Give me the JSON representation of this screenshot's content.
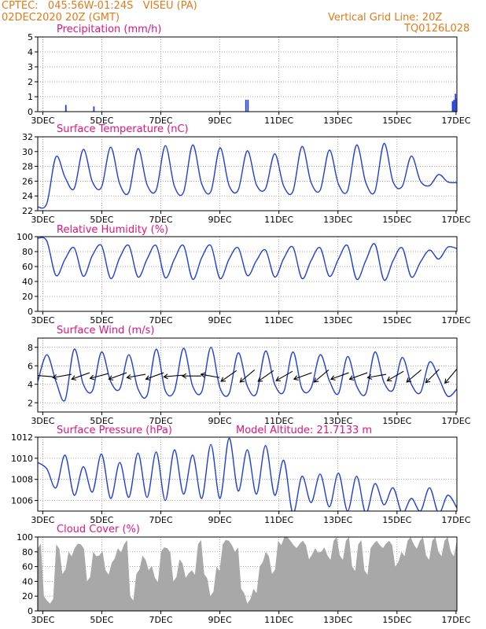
{
  "header": {
    "left_line1": "CPTEC:   045:56W-01:24S   VISEU (PA)",
    "left_line2": "02DEC2020 20Z (GMT)",
    "right_line1": "Vertical Grid Line: 20Z",
    "right_line2": "TQ0126L028"
  },
  "colors": {
    "header": "#e07a1a",
    "title": "#e0157a",
    "line": "#1f3fd8",
    "cloud": "#a8a8a8",
    "axis": "#000000",
    "wind_arrow": "#000000"
  },
  "chart_data": [
    {
      "type": "bar",
      "title": "Precipitation (mm/h)",
      "ylim": [
        0,
        5
      ],
      "yticks": [
        "0",
        "1",
        "2",
        "3",
        "4",
        "5"
      ],
      "xticks": [
        "3DEC",
        "5DEC",
        "7DEC",
        "9DEC",
        "11DEC",
        "13DEC",
        "15DEC",
        "17DEC"
      ],
      "x_unit": "days since 02DEC2020 20Z",
      "grid": true,
      "bars": [
        {
          "x": 0.95,
          "y": 0.45
        },
        {
          "x": 1.9,
          "y": 0.35
        },
        {
          "x": 7.05,
          "y": 0.8
        },
        {
          "x": 7.12,
          "y": 0.8
        },
        {
          "x": 14.05,
          "y": 0.7
        },
        {
          "x": 14.1,
          "y": 0.8
        },
        {
          "x": 14.15,
          "y": 1.2
        },
        {
          "x": 14.2,
          "y": 0.9
        },
        {
          "x": 14.25,
          "y": 2.0
        },
        {
          "x": 14.3,
          "y": 1.3
        }
      ]
    },
    {
      "type": "line",
      "title": "Surface Temperature (nC)",
      "ylim": [
        22,
        32
      ],
      "yticks": [
        "22",
        "24",
        "26",
        "28",
        "30",
        "32"
      ],
      "xticks": [
        "3DEC",
        "5DEC",
        "7DEC",
        "9DEC",
        "11DEC",
        "13DEC",
        "15DEC",
        "17DEC"
      ],
      "grid": true,
      "series": [
        {
          "values": [
            22.5,
            23.0,
            29.3,
            26.5,
            25.0,
            30.3,
            25.9,
            25.2,
            30.6,
            25.6,
            24.5,
            30.4,
            25.5,
            24.8,
            30.8,
            25.3,
            24.5,
            30.9,
            25.6,
            24.6,
            30.5,
            25.4,
            24.8,
            30.1,
            25.5,
            25.0,
            29.7,
            25.3,
            24.6,
            30.7,
            25.8,
            24.8,
            30.2,
            25.6,
            24.7,
            30.9,
            25.8,
            24.6,
            31.1,
            25.9,
            25.3,
            29.4,
            26.0,
            25.4,
            26.9,
            25.9,
            25.8
          ]
        }
      ]
    },
    {
      "type": "line",
      "title": "Relative Humidity (%)",
      "ylim": [
        0,
        100
      ],
      "yticks": [
        "0",
        "20",
        "40",
        "60",
        "80",
        "100"
      ],
      "xticks": [
        "3DEC",
        "5DEC",
        "7DEC",
        "9DEC",
        "11DEC",
        "13DEC",
        "15DEC",
        "17DEC"
      ],
      "grid": true,
      "series": [
        {
          "values": [
            98,
            94,
            48,
            70,
            85,
            47,
            75,
            88,
            44,
            72,
            88,
            46,
            70,
            88,
            45,
            70,
            88,
            43,
            72,
            88,
            44,
            70,
            85,
            48,
            68,
            82,
            46,
            71,
            86,
            44,
            68,
            85,
            47,
            70,
            88,
            43,
            68,
            90,
            42,
            68,
            85,
            46,
            66,
            82,
            70,
            86,
            84
          ]
        }
      ]
    },
    {
      "type": "line",
      "title": "Surface Wind (m/s)",
      "ylim": [
        1,
        9
      ],
      "yticks": [
        "2",
        "4",
        "6",
        "8"
      ],
      "xticks": [
        "3DEC",
        "5DEC",
        "7DEC",
        "9DEC",
        "11DEC",
        "13DEC",
        "15DEC",
        "17DEC"
      ],
      "grid": true,
      "series": [
        {
          "values": [
            4.3,
            7.2,
            4.3,
            2.3,
            7.8,
            4.0,
            3.3,
            7.5,
            4.3,
            3.5,
            7.2,
            3.5,
            2.8,
            7.8,
            3.3,
            3.3,
            7.9,
            3.8,
            3.2,
            8.0,
            3.6,
            3.0,
            7.4,
            3.8,
            3.0,
            7.6,
            4.0,
            3.2,
            7.5,
            3.5,
            3.6,
            7.2,
            4.4,
            3.0,
            7.0,
            3.8,
            3.0,
            7.5,
            4.2,
            3.4,
            6.9,
            4.0,
            3.1,
            6.4,
            4.7,
            2.7,
            3.5
          ]
        }
      ],
      "wind_arrow_angles_deg": [
        175,
        190,
        200,
        195,
        200,
        190,
        200,
        185,
        180,
        170,
        215,
        220,
        215,
        210,
        200,
        220,
        200,
        200,
        190,
        210,
        220,
        225,
        230
      ]
    },
    {
      "type": "line",
      "title": "Surface Pressure (hPa)",
      "annotation": "Model Altitude: 21.7133 m",
      "ylim": [
        1005,
        1012
      ],
      "yticks": [
        "1006",
        "1008",
        "1010",
        "1012"
      ],
      "xticks": [
        "3DEC",
        "5DEC",
        "7DEC",
        "9DEC",
        "11DEC",
        "13DEC",
        "15DEC",
        "17DEC"
      ],
      "grid": true,
      "series": [
        {
          "values": [
            1009.6,
            1009.0,
            1007.2,
            1010.3,
            1006.5,
            1009.2,
            1006.8,
            1010.4,
            1006.2,
            1009.6,
            1006.3,
            1010.5,
            1006.3,
            1010.6,
            1006.0,
            1010.8,
            1006.6,
            1010.3,
            1006.2,
            1011.3,
            1006.2,
            1011.9,
            1006.9,
            1010.8,
            1006.6,
            1011.2,
            1006.5,
            1009.8,
            1004.8,
            1008.3,
            1005.8,
            1008.5,
            1005.4,
            1008.6,
            1005.0,
            1008.3,
            1004.8,
            1007.6,
            1005.6,
            1007.2,
            1004.8,
            1006.2,
            1005.0,
            1007.2,
            1004.8,
            1006.5,
            1005.3
          ]
        }
      ]
    },
    {
      "type": "area",
      "title": "Cloud Cover (%)",
      "ylim": [
        0,
        100
      ],
      "yticks": [
        "0",
        "20",
        "40",
        "60",
        "80",
        "100"
      ],
      "xticks": [
        "3DEC",
        "5DEC",
        "7DEC",
        "9DEC",
        "11DEC",
        "13DEC",
        "15DEC",
        "17DEC"
      ],
      "grid": true,
      "series": [
        {
          "values": [
            85,
            20,
            10,
            90,
            50,
            80,
            85,
            90,
            40,
            80,
            75,
            55,
            65,
            85,
            90,
            20,
            50,
            75,
            55,
            45,
            80,
            85,
            40,
            70,
            45,
            55,
            90,
            50,
            20,
            60,
            90,
            95,
            80,
            30,
            10,
            30,
            60,
            80,
            50,
            95,
            100,
            95,
            85,
            95,
            70,
            85,
            80,
            75,
            95,
            75,
            95,
            60,
            90,
            55,
            85,
            95,
            85,
            95,
            60,
            80,
            95,
            90,
            95,
            75,
            95,
            80,
            95,
            80,
            95
          ]
        }
      ]
    }
  ]
}
